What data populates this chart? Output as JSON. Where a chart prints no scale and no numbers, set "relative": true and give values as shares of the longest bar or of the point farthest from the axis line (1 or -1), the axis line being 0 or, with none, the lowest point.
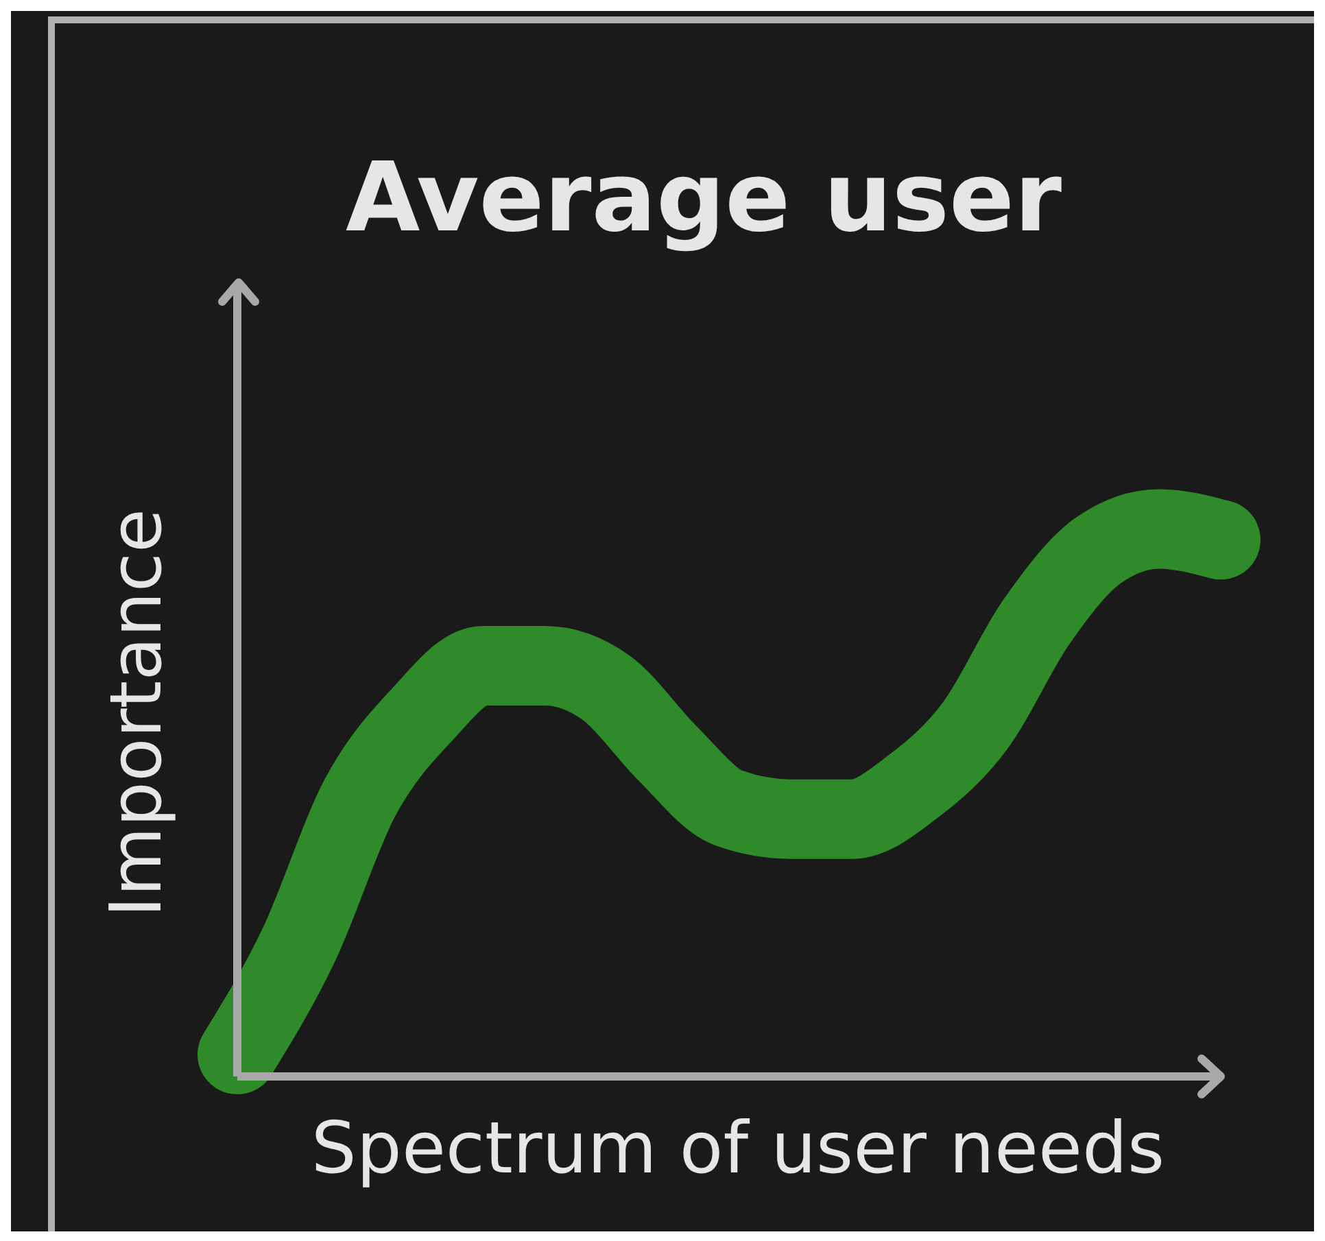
{
  "chart_data": {
    "type": "line",
    "title": "Average user",
    "xlabel": "Spectrum of user needs",
    "ylabel": "Importance",
    "relative": true,
    "categories": [
      null,
      null,
      null,
      null,
      null,
      null,
      null,
      null,
      null,
      null,
      null,
      null,
      null,
      null,
      null,
      null,
      null
    ],
    "series": [
      {
        "color": "#2f8a29",
        "values": [
          0.04,
          0.24,
          0.51,
          0.66,
          0.75,
          0.75,
          0.71,
          0.59,
          0.49,
          0.47,
          0.47,
          0.53,
          0.64,
          0.83,
          0.96,
          1,
          0.98
        ]
      }
    ]
  }
}
